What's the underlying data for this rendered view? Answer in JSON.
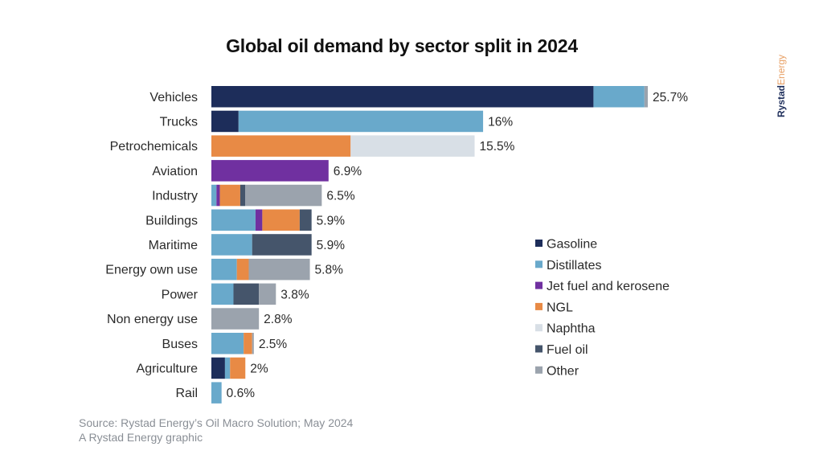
{
  "chart_data": {
    "type": "bar",
    "orientation": "horizontal",
    "stacked": true,
    "title": "Global oil demand by sector split in 2024",
    "xlabel": "",
    "ylabel": "",
    "unit": "%",
    "xlim": [
      0,
      26
    ],
    "grid": false,
    "legend_position": "right",
    "categories": [
      "Vehicles",
      "Trucks",
      "Petrochemicals",
      "Aviation",
      "Industry",
      "Buildings",
      "Maritime",
      "Energy own use",
      "Power",
      "Non energy use",
      "Buses",
      "Agriculture",
      "Rail"
    ],
    "totals": [
      25.7,
      16,
      15.5,
      6.9,
      6.5,
      5.9,
      5.9,
      5.8,
      3.8,
      2.8,
      2.5,
      2,
      0.6
    ],
    "total_labels": [
      "25.7%",
      "16%",
      "15.5%",
      "6.9%",
      "6.5%",
      "5.9%",
      "5.9%",
      "5.8%",
      "3.8%",
      "2.8%",
      "2.5%",
      "2%",
      "0.6%"
    ],
    "series": [
      {
        "name": "Gasoline",
        "color": "#1d2d5a",
        "values": [
          22.5,
          1.6,
          0,
          0,
          0,
          0,
          0,
          0,
          0,
          0,
          0,
          0.8,
          0
        ]
      },
      {
        "name": "Distillates",
        "color": "#69a9cb",
        "values": [
          3.0,
          14.4,
          0,
          0,
          0.3,
          2.6,
          2.4,
          1.5,
          1.3,
          0,
          1.9,
          0.3,
          0.6
        ]
      },
      {
        "name": "Jet fuel and kerosene",
        "color": "#7030a0",
        "values": [
          0,
          0,
          0,
          6.9,
          0.2,
          0.4,
          0,
          0,
          0,
          0,
          0,
          0,
          0
        ]
      },
      {
        "name": "NGL",
        "color": "#e88a45",
        "values": [
          0,
          0,
          8.2,
          0,
          1.2,
          2.2,
          0,
          0.7,
          0,
          0,
          0.5,
          0.9,
          0
        ]
      },
      {
        "name": "Naphtha",
        "color": "#d8dfe6",
        "values": [
          0,
          0,
          7.3,
          0,
          0,
          0,
          0,
          0,
          0,
          0,
          0,
          0,
          0
        ]
      },
      {
        "name": "Fuel oil",
        "color": "#45556b",
        "values": [
          0,
          0,
          0,
          0,
          0.3,
          0.7,
          3.5,
          0,
          1.5,
          0,
          0,
          0,
          0
        ]
      },
      {
        "name": "Other",
        "color": "#9ba3ad",
        "values": [
          0.2,
          0,
          0,
          0,
          4.5,
          0,
          0,
          3.6,
          1.0,
          2.8,
          0.1,
          0,
          0
        ]
      }
    ]
  },
  "footer": {
    "source": "Source: Rystad Energy’s Oil Macro Solution; May 2024",
    "credit": "A Rystad Energy graphic"
  },
  "brand": {
    "part1": "Rystad",
    "part2": "Energy",
    "color1": "#1d2d5a",
    "color2": "#e8a065"
  }
}
